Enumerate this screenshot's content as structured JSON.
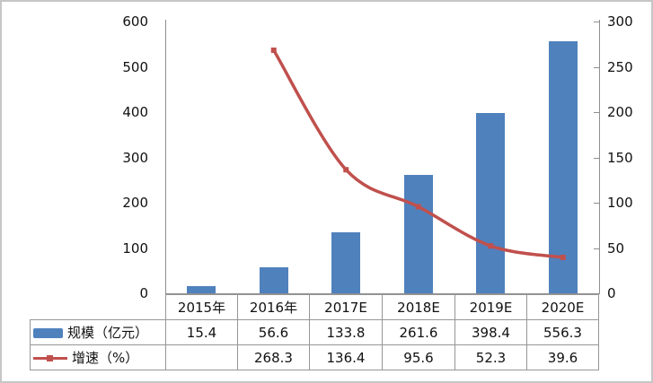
{
  "chart_data": {
    "type": "combo-bar-line",
    "categories": [
      "2015年",
      "2016年",
      "2017E",
      "2018E",
      "2019E",
      "2020E"
    ],
    "series": [
      {
        "name": "规模（亿元）",
        "type": "bar",
        "axis": "left",
        "color": "#4F81BD",
        "values": [
          15.4,
          56.6,
          133.8,
          261.6,
          398.4,
          556.3
        ]
      },
      {
        "name": "增速（%）",
        "type": "line",
        "axis": "right",
        "color": "#C0504D",
        "values": [
          null,
          268.3,
          136.4,
          95.6,
          52.3,
          39.6
        ]
      }
    ],
    "left_axis": {
      "min": 0,
      "max": 600,
      "step": 100
    },
    "right_axis": {
      "min": 0,
      "max": 300,
      "step": 50
    },
    "grid": false,
    "legend_position": "table-left",
    "data_table": true,
    "title": "",
    "xlabel": "",
    "ylabel": ""
  },
  "colors": {
    "bar": "#4F81BD",
    "line": "#C0504D",
    "axis": "#8E8E8E",
    "table_border": "#969696",
    "outer_border": "#C6C6C6",
    "text": "#111111"
  }
}
